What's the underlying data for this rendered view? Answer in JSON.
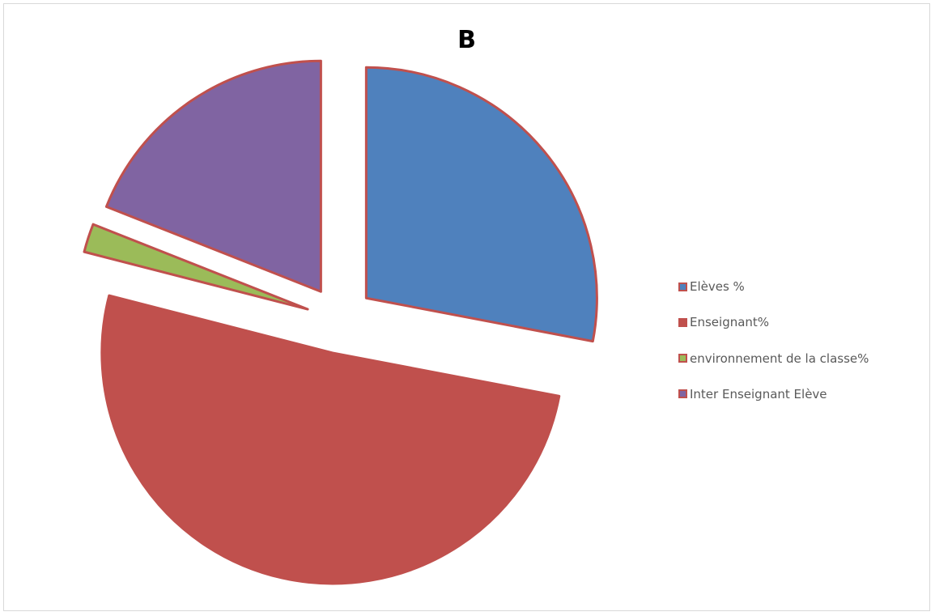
{
  "chart_data": {
    "type": "pie",
    "title": "B",
    "exploded": true,
    "slice_border_color": "#c0504d",
    "categories": [
      "Elèves %",
      "Enseignant%",
      "environnement de la classe%",
      "Inter Enseignant Elève"
    ],
    "values": [
      28,
      51,
      2,
      19
    ],
    "colors": [
      "#4f81bd",
      "#c0504d",
      "#9bbb59",
      "#8064a2"
    ],
    "legend_position": "right"
  }
}
